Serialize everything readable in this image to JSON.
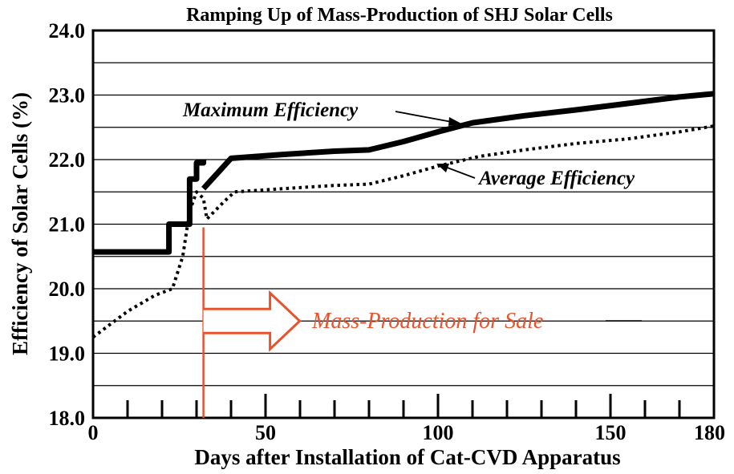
{
  "chart_data": {
    "type": "line",
    "title": "Ramping Up of Mass-Production of SHJ Solar Cells",
    "xlabel": "Days after Installation of Cat-CVD Apparatus",
    "ylabel": "Efficiency  of Solar Cells (%)",
    "xlim": [
      0,
      180
    ],
    "ylim": [
      18.0,
      24.0
    ],
    "x_ticks": [
      "0",
      "50",
      "100",
      "150",
      "180"
    ],
    "y_ticks": [
      "18.0",
      "19.0",
      "20.0",
      "21.0",
      "22.0",
      "23.0",
      "24.0"
    ],
    "grid": "horizontal",
    "series": [
      {
        "name": "Maximum Efficiency",
        "style": "solid",
        "segments": [
          [
            [
              0,
              20.57
            ],
            [
              22,
              20.57
            ],
            [
              22,
              21.0
            ],
            [
              28,
              21.0
            ],
            [
              28,
              21.7
            ],
            [
              30,
              21.7
            ],
            [
              30,
              21.95
            ],
            [
              32,
              21.95
            ],
            [
              32,
              22.0
            ]
          ],
          [
            [
              32,
              21.55
            ],
            [
              40,
              22.02
            ],
            [
              55,
              22.08
            ],
            [
              70,
              22.13
            ],
            [
              80,
              22.15
            ],
            [
              90,
              22.28
            ],
            [
              100,
              22.43
            ],
            [
              110,
              22.57
            ],
            [
              125,
              22.68
            ],
            [
              140,
              22.77
            ],
            [
              155,
              22.87
            ],
            [
              170,
              22.97
            ],
            [
              180,
              23.02
            ]
          ]
        ]
      },
      {
        "name": "Average Efficiency",
        "style": "dotted",
        "segments": [
          [
            [
              0,
              19.25
            ],
            [
              10,
              19.65
            ],
            [
              18,
              19.9
            ],
            [
              23,
              20.0
            ],
            [
              26,
              20.5
            ],
            [
              28,
              21.2
            ],
            [
              30,
              21.5
            ],
            [
              32,
              21.4
            ],
            [
              33,
              21.08
            ],
            [
              38,
              21.35
            ],
            [
              41,
              21.5
            ],
            [
              55,
              21.55
            ],
            [
              70,
              21.6
            ],
            [
              80,
              21.62
            ],
            [
              90,
              21.75
            ],
            [
              100,
              21.9
            ],
            [
              112,
              22.05
            ],
            [
              125,
              22.15
            ],
            [
              140,
              22.25
            ],
            [
              155,
              22.32
            ],
            [
              170,
              22.43
            ],
            [
              180,
              22.52
            ]
          ]
        ]
      }
    ],
    "annotations": {
      "max_label": "Maximum Efficiency",
      "avg_label": "Average Efficiency",
      "sale_label": "Mass-Production for Sale",
      "sale_start_day": 32
    },
    "colors": {
      "accent": "#e8532e",
      "line": "#000000"
    }
  }
}
